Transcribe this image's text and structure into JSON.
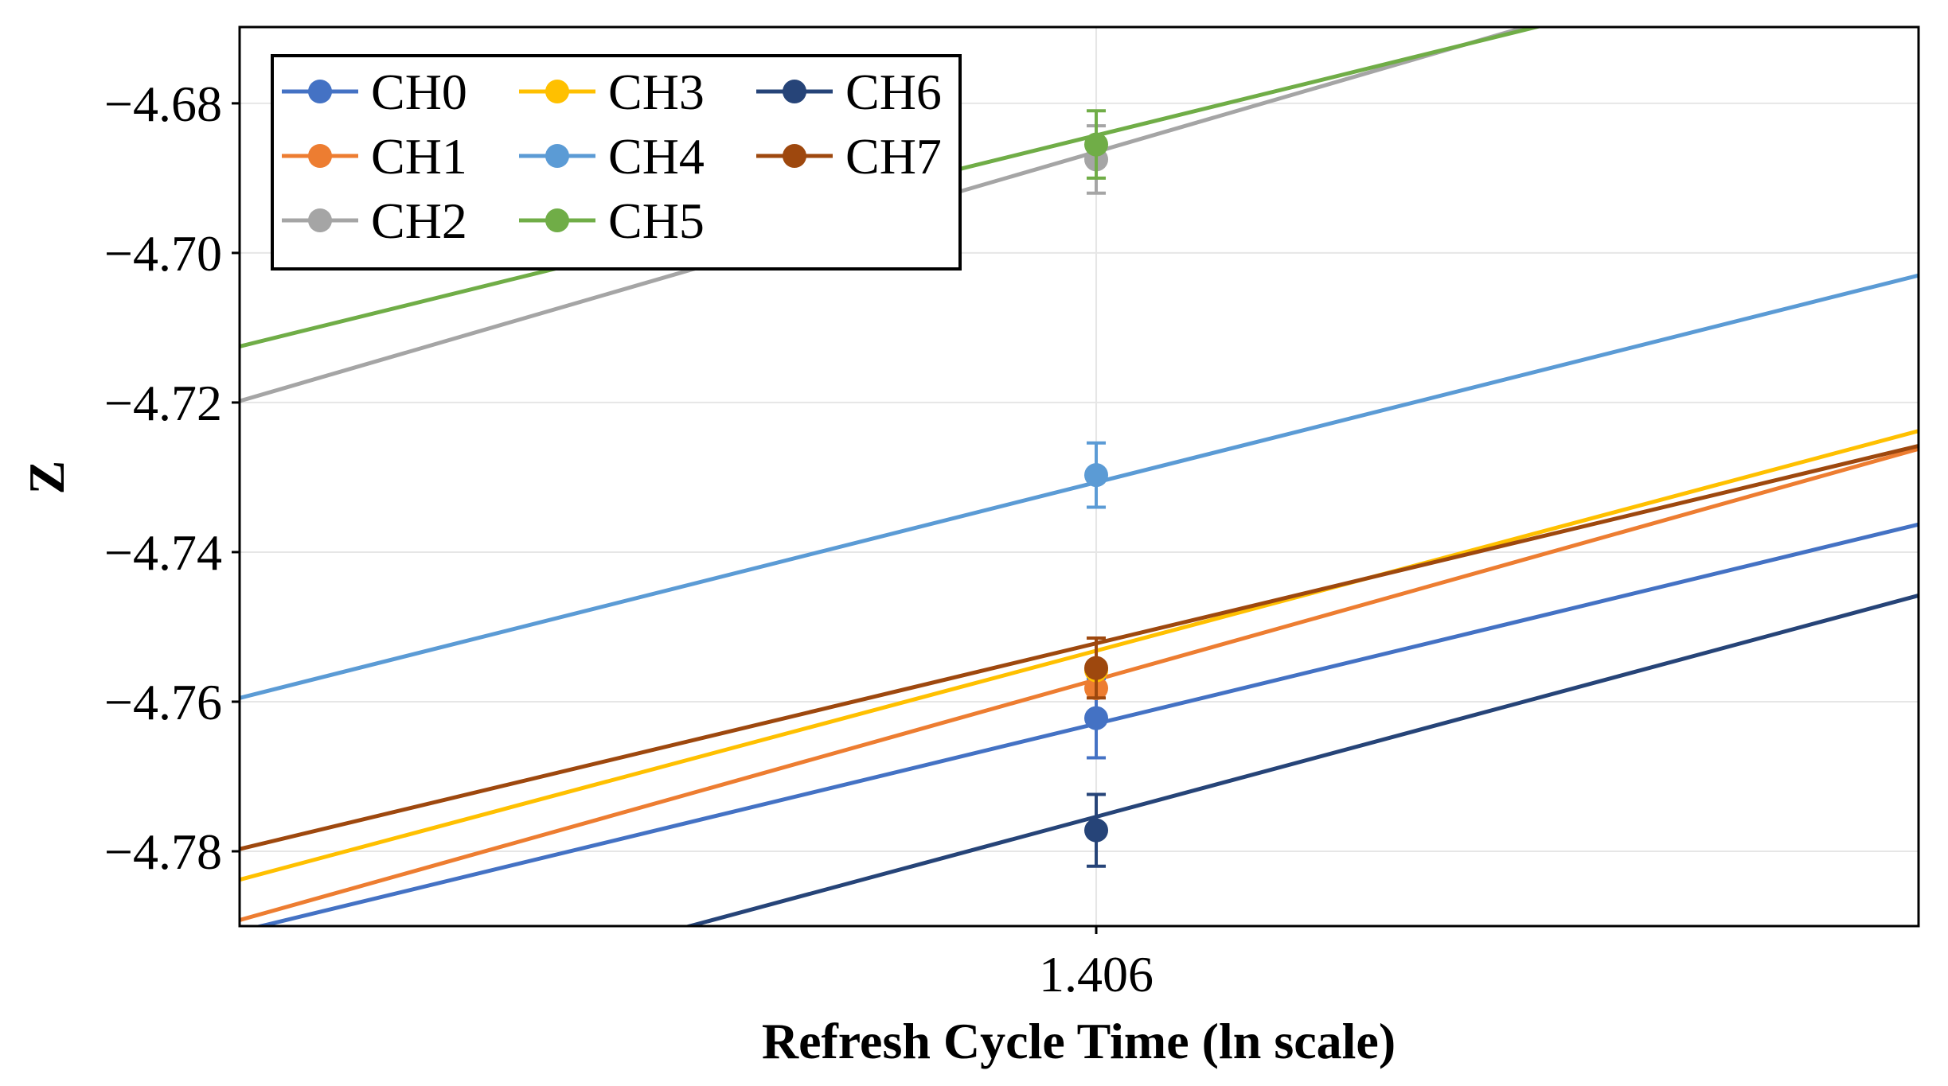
{
  "chart_data": {
    "type": "line",
    "xlabel": "Refresh Cycle Time (ln scale)",
    "ylabel": "Z",
    "x_ticks": [
      1.406
    ],
    "x_tick_labels": [
      "1.406"
    ],
    "y_ticks": [
      -4.78,
      -4.76,
      -4.74,
      -4.72,
      -4.7,
      -4.68
    ],
    "y_tick_labels": [
      "−4.78",
      "−4.76",
      "−4.74",
      "−4.72",
      "−4.70",
      "−4.68"
    ],
    "xlim": [
      1.401,
      1.4108
    ],
    "ylim": [
      -4.79,
      -4.6698
    ],
    "grid": true,
    "legend": {
      "position": "top-left",
      "columns": 3
    },
    "series": [
      {
        "name": "CH0",
        "color": "#4472C4",
        "x": 1.406,
        "y": -4.7622,
        "err": 0.0053,
        "line_start": -4.7907,
        "line_end": -4.7363
      },
      {
        "name": "CH1",
        "color": "#ED7D31",
        "x": 1.406,
        "y": -4.7582,
        "err": 0.0,
        "line_start": -4.7892,
        "line_end": -4.7262
      },
      {
        "name": "CH2",
        "color": "#A5A5A5",
        "x": 1.406,
        "y": -4.6875,
        "err": 0.0045,
        "line_start": -4.7198,
        "line_end": -4.6545
      },
      {
        "name": "CH3",
        "color": "#FFC000",
        "x": 1.406,
        "y": -4.7558,
        "err": 0.0,
        "line_start": -4.7838,
        "line_end": -4.7238
      },
      {
        "name": "CH4",
        "color": "#5B9BD5",
        "x": 1.406,
        "y": -4.7297,
        "err": 0.0043,
        "line_start": -4.7595,
        "line_end": -4.703
      },
      {
        "name": "CH5",
        "color": "#70AD47",
        "x": 1.406,
        "y": -4.6855,
        "err": 0.0045,
        "line_start": -4.7125,
        "line_end": -4.6572
      },
      {
        "name": "CH6",
        "color": "#264478",
        "x": 1.406,
        "y": -4.7772,
        "err": 0.0048,
        "line_start": -4.8062,
        "line_end": -4.7458
      },
      {
        "name": "CH7",
        "color": "#9E480E",
        "x": 1.406,
        "y": -4.7555,
        "err": 0.004,
        "line_start": -4.7797,
        "line_end": -4.7258
      }
    ]
  }
}
